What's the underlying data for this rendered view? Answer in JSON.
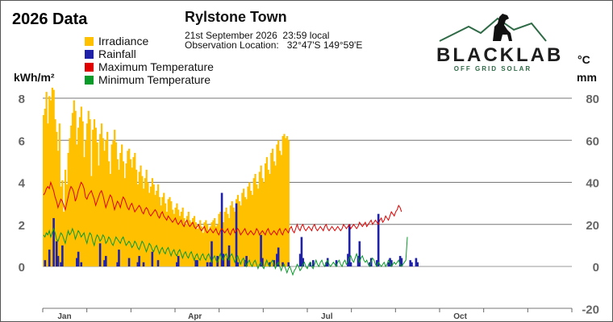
{
  "header": {
    "title": "2026 Data",
    "station": "Rylstone Town",
    "datetime": "21st September 2026  23:59 local",
    "location": "Observation Location:   32°47'S 149°59'E"
  },
  "logo": {
    "name": "BLACKLAB",
    "tagline": "OFF GRID SOLAR",
    "icon": "dog-on-mountains-icon"
  },
  "colors": {
    "irradiance": "#ffc000",
    "rainfall": "#1f22a8",
    "max_temp": "#e00000",
    "min_temp": "#0a9a2a"
  },
  "chart_data": {
    "type": "bar",
    "title": "2026 Data",
    "left_axis": {
      "label": "kWh/m²",
      "ticks": [
        0,
        2,
        4,
        6,
        8
      ],
      "range": [
        -4,
        8
      ]
    },
    "right_axis": {
      "labels": [
        "°C",
        "mm"
      ],
      "ticks": [
        -20,
        0,
        20,
        40,
        60,
        80
      ],
      "range": [
        -20,
        80
      ]
    },
    "x_axis": {
      "months": [
        "Jan",
        "Apr",
        "Jul",
        "Oct"
      ],
      "month_days": [
        15,
        105,
        196,
        288
      ],
      "range_days": [
        0,
        365
      ]
    },
    "grid": true,
    "legend": "top-left",
    "series": [
      {
        "name": "Irradiance",
        "type": "bar",
        "axis": "left",
        "days_start": 1,
        "values": [
          7.2,
          7.5,
          8.3,
          6.8,
          8.1,
          7.9,
          8.5,
          8.4,
          7.0,
          6.4,
          5.5,
          6.8,
          3.8,
          4.1,
          2.6,
          4.6,
          3.9,
          5.4,
          6.1,
          6.7,
          7.3,
          7.9,
          7.4,
          5.8,
          6.6,
          7.1,
          7.6,
          6.9,
          5.2,
          6.0,
          6.8,
          7.4,
          7.0,
          4.3,
          6.5,
          7.0,
          6.6,
          5.9,
          4.8,
          6.3,
          6.8,
          6.1,
          5.5,
          6.0,
          6.4,
          5.0,
          4.4,
          5.8,
          6.0,
          6.5,
          5.9,
          5.1,
          4.6,
          5.4,
          5.8,
          5.0,
          4.2,
          4.9,
          5.5,
          5.6,
          5.1,
          4.7,
          5.2,
          5.4,
          4.6,
          3.9,
          4.5,
          4.8,
          4.3,
          3.7,
          4.2,
          4.6,
          4.0,
          3.5,
          3.8,
          4.2,
          3.9,
          3.4,
          3.6,
          3.9,
          3.3,
          2.9,
          3.3,
          3.5,
          3.0,
          2.6,
          3.2,
          3.3,
          3.1,
          2.7,
          2.5,
          2.8,
          3.0,
          2.7,
          2.4,
          2.6,
          2.8,
          2.3,
          2.0,
          2.4,
          2.6,
          2.2,
          2.1,
          2.3,
          2.4,
          2.1,
          1.8,
          2.0,
          2.2,
          1.9,
          1.6,
          2.1,
          2.2,
          2.0,
          1.7,
          1.9,
          2.1,
          2.2,
          2.3,
          1.9,
          2.0,
          2.5,
          2.6,
          2.2,
          2.1,
          2.6,
          2.8,
          2.5,
          2.3,
          2.9,
          3.1,
          2.8,
          2.6,
          3.2,
          3.4,
          3.1,
          2.9,
          3.5,
          3.7,
          3.3,
          3.2,
          3.8,
          4.0,
          3.6,
          3.4,
          4.2,
          4.4,
          3.9,
          3.7,
          4.5,
          4.8,
          4.2,
          4.0,
          4.9,
          5.2,
          4.6,
          4.4,
          5.4,
          5.6,
          5.0,
          4.8,
          5.8,
          6.0,
          5.5,
          5.3,
          6.2,
          6.3,
          6.1,
          6.2,
          6.0
        ]
      },
      {
        "name": "Rainfall",
        "type": "bar",
        "axis": "right",
        "events": [
          [
            2,
            3
          ],
          [
            5,
            8
          ],
          [
            8,
            23
          ],
          [
            10,
            12
          ],
          [
            11,
            5
          ],
          [
            13,
            2
          ],
          [
            14,
            10
          ],
          [
            24,
            4
          ],
          [
            25,
            7
          ],
          [
            27,
            2
          ],
          [
            40,
            11
          ],
          [
            43,
            3
          ],
          [
            44,
            5
          ],
          [
            52,
            2
          ],
          [
            53,
            8
          ],
          [
            60,
            4
          ],
          [
            66,
            2
          ],
          [
            67,
            5
          ],
          [
            70,
            2
          ],
          [
            76,
            7
          ],
          [
            80,
            3
          ],
          [
            93,
            2
          ],
          [
            94,
            5
          ],
          [
            106,
            3
          ],
          [
            107,
            3
          ],
          [
            114,
            2
          ],
          [
            116,
            2
          ],
          [
            117,
            12
          ],
          [
            121,
            5
          ],
          [
            124,
            35
          ],
          [
            125,
            6
          ],
          [
            128,
            4
          ],
          [
            129,
            10
          ],
          [
            134,
            30
          ],
          [
            135,
            2
          ],
          [
            140,
            3
          ],
          [
            141,
            5
          ],
          [
            151,
            15
          ],
          [
            152,
            4
          ],
          [
            157,
            2
          ],
          [
            160,
            3
          ],
          [
            162,
            6
          ],
          [
            163,
            9
          ],
          [
            166,
            2
          ],
          [
            170,
            2
          ],
          [
            178,
            6
          ],
          [
            179,
            14
          ],
          [
            180,
            4
          ],
          [
            185,
            2
          ],
          [
            187,
            3
          ],
          [
            196,
            2
          ],
          [
            197,
            4
          ],
          [
            203,
            3
          ],
          [
            211,
            6
          ],
          [
            212,
            20
          ],
          [
            213,
            2
          ],
          [
            218,
            5
          ],
          [
            219,
            12
          ],
          [
            226,
            2
          ],
          [
            227,
            4
          ],
          [
            231,
            3
          ],
          [
            232,
            25
          ],
          [
            239,
            2
          ],
          [
            240,
            4
          ],
          [
            241,
            3
          ],
          [
            247,
            5
          ],
          [
            248,
            4
          ],
          [
            254,
            3
          ],
          [
            255,
            2
          ],
          [
            258,
            4
          ],
          [
            259,
            2
          ]
        ]
      },
      {
        "name": "Maximum Temperature",
        "type": "line",
        "axis": "right",
        "days_start": 1,
        "values": [
          34,
          35,
          37,
          38,
          37,
          40,
          38,
          36,
          33,
          31,
          28,
          30,
          32,
          31,
          29,
          27,
          30,
          33,
          36,
          38,
          37,
          35,
          31,
          33,
          36,
          38,
          40,
          39,
          37,
          33,
          32,
          34,
          35,
          36,
          34,
          32,
          29,
          31,
          33,
          35,
          36,
          34,
          31,
          28,
          30,
          32,
          34,
          33,
          30,
          27,
          29,
          31,
          30,
          28,
          31,
          33,
          32,
          30,
          28,
          27,
          29,
          30,
          28,
          26,
          27,
          28,
          29,
          28,
          26,
          25,
          27,
          28,
          27,
          25,
          24,
          25,
          26,
          27,
          26,
          24,
          23,
          25,
          26,
          24,
          23,
          22,
          24,
          23,
          22,
          21,
          22,
          23,
          21,
          20,
          21,
          22,
          20,
          19,
          21,
          22,
          20,
          19,
          20,
          21,
          19,
          18,
          19,
          20,
          18,
          17,
          18,
          19,
          17,
          16,
          17,
          18,
          17,
          16,
          17,
          18,
          16,
          15,
          17,
          18,
          17,
          16,
          17,
          18,
          16,
          15,
          17,
          18,
          16,
          17,
          18,
          17,
          15,
          16,
          17,
          18,
          16,
          15,
          16,
          17,
          16,
          15,
          16,
          18,
          17,
          15,
          16,
          17,
          16,
          15,
          17,
          18,
          16,
          15,
          16,
          17,
          16,
          15,
          17,
          18,
          16,
          15,
          17,
          18,
          17,
          16,
          18,
          19,
          17,
          16,
          18,
          20,
          18,
          17,
          19,
          20,
          18,
          17,
          18,
          19,
          18,
          17,
          19,
          20,
          18,
          17,
          18,
          19,
          18,
          17,
          19,
          20,
          18,
          17,
          18,
          19,
          18,
          17,
          18,
          19,
          18,
          17,
          18,
          20,
          19,
          18,
          19,
          20,
          18,
          19,
          20,
          19,
          18,
          19,
          21,
          20,
          19,
          20,
          21,
          19,
          20,
          21,
          22,
          20,
          21,
          22,
          21,
          20,
          22,
          23,
          21,
          22,
          24,
          23,
          22,
          24,
          26,
          25,
          24,
          26,
          27,
          29,
          28,
          26
        ]
      },
      {
        "name": "Minimum Temperature",
        "type": "line",
        "axis": "right",
        "days_start": 1,
        "values": [
          15,
          14,
          16,
          15,
          17,
          14,
          16,
          18,
          16,
          13,
          12,
          14,
          16,
          15,
          13,
          11,
          14,
          17,
          15,
          16,
          18,
          16,
          13,
          15,
          17,
          16,
          14,
          15,
          16,
          13,
          11,
          14,
          16,
          15,
          12,
          10,
          13,
          15,
          14,
          12,
          13,
          15,
          14,
          11,
          12,
          14,
          13,
          11,
          10,
          12,
          14,
          13,
          12,
          11,
          13,
          14,
          12,
          10,
          11,
          12,
          11,
          9,
          10,
          12,
          11,
          9,
          8,
          10,
          12,
          11,
          9,
          7,
          9,
          11,
          10,
          8,
          7,
          9,
          10,
          8,
          6,
          8,
          9,
          7,
          6,
          8,
          9,
          7,
          5,
          7,
          8,
          6,
          5,
          7,
          8,
          6,
          4,
          6,
          7,
          5,
          4,
          6,
          7,
          5,
          3,
          5,
          6,
          4,
          3,
          5,
          6,
          4,
          3,
          5,
          6,
          4,
          2,
          4,
          5,
          3,
          2,
          4,
          6,
          4,
          3,
          5,
          6,
          4,
          3,
          5,
          6,
          4,
          2,
          4,
          5,
          3,
          1,
          3,
          4,
          2,
          0,
          2,
          3,
          1,
          0,
          2,
          3,
          1,
          -1,
          1,
          2,
          0,
          -1,
          1,
          3,
          1,
          0,
          2,
          3,
          1,
          -1,
          1,
          2,
          0,
          -2,
          0,
          1,
          -1,
          -3,
          -1,
          0,
          -2,
          -4,
          -2,
          -1,
          1,
          0,
          -2,
          -1,
          1,
          2,
          0,
          -1,
          1,
          2,
          0,
          -1,
          1,
          3,
          1,
          0,
          2,
          3,
          1,
          0,
          2,
          3,
          1,
          0,
          1,
          2,
          1,
          0,
          2,
          3,
          1,
          0,
          2,
          3,
          1,
          2,
          4,
          5,
          3,
          2,
          4,
          6,
          4,
          2,
          4,
          5,
          3,
          2,
          3,
          1,
          0,
          2,
          4,
          3,
          1,
          0,
          2,
          1,
          0,
          1,
          2,
          0,
          1,
          3,
          2,
          0,
          1,
          2,
          1,
          2,
          3,
          1,
          0,
          1,
          2,
          3,
          14
        ]
      }
    ]
  }
}
